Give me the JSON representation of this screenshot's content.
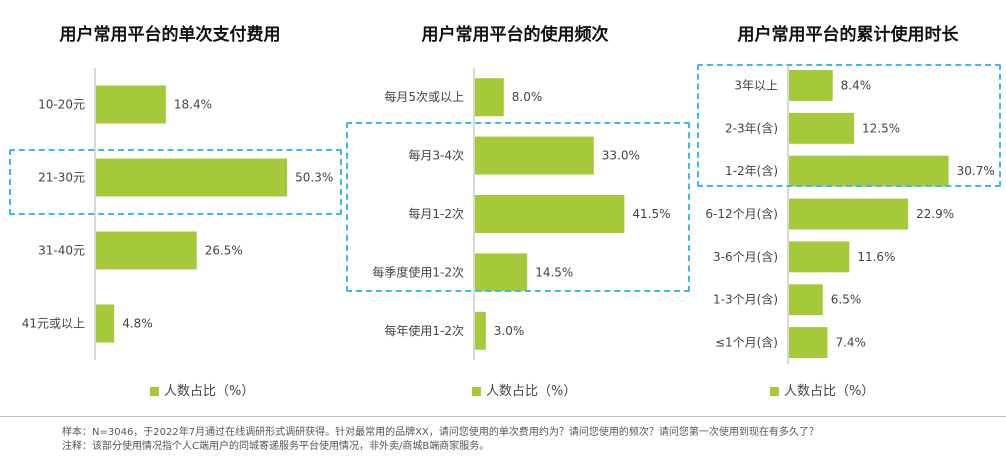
{
  "chart_data": [
    {
      "type": "bar",
      "orientation": "horizontal",
      "title": "用户常用平台的单次支付费用",
      "categories": [
        "10-20元",
        "21-30元",
        "31-40元",
        "41元或以上"
      ],
      "values": [
        18.4,
        50.3,
        26.5,
        4.8
      ],
      "labels": [
        "18.4%",
        "50.3%",
        "26.5%",
        "4.8%"
      ],
      "legend": "人数占比（%）",
      "highlight": [
        "21-30元"
      ],
      "color": "#a6c93a"
    },
    {
      "type": "bar",
      "orientation": "horizontal",
      "title": "用户常用平台的使用频次",
      "categories": [
        "每月5次或以上",
        "每月3-4次",
        "每月1-2次",
        "每季度使用1-2次",
        "每年使用1-2次"
      ],
      "values": [
        8.0,
        33.0,
        41.5,
        14.5,
        3.0
      ],
      "labels": [
        "8.0%",
        "33.0%",
        "41.5%",
        "14.5%",
        "3.0%"
      ],
      "legend": "人数占比（%）",
      "highlight": [
        "每月3-4次",
        "每月1-2次",
        "每季度使用1-2次"
      ],
      "color": "#a6c93a"
    },
    {
      "type": "bar",
      "orientation": "horizontal",
      "title": "用户常用平台的累计使用时长",
      "categories": [
        "3年以上",
        "2-3年(含)",
        "1-2年(含)",
        "6-12个月(含)",
        "3-6个月(含)",
        "1-3个月(含)",
        "≤1个月(含)"
      ],
      "values": [
        8.4,
        12.5,
        30.7,
        22.9,
        11.6,
        6.5,
        7.4
      ],
      "labels": [
        "8.4%",
        "12.5%",
        "30.7%",
        "22.9%",
        "11.6%",
        "6.5%",
        "7.4%"
      ],
      "legend": "人数占比（%）",
      "highlight": [
        "3年以上",
        "2-3年(含)",
        "1-2年(含)"
      ],
      "color": "#a6c93a"
    }
  ],
  "footer": {
    "sample": "样本：N=3046，于2022年7月通过在线调研形式调研获得。针对最常用的品牌XX，请问您使用的单次费用约为？请问您使用的频次？请问您第一次使用到现在有多久了？",
    "note": "注释：该部分使用情况指个人C端用户的同城寄递服务平台使用情况，非外卖/商城B端商家服务。"
  },
  "colors": {
    "bar": "#a6c93a",
    "highlight": "#3cbbe6",
    "axis": "#b0b0b0"
  }
}
